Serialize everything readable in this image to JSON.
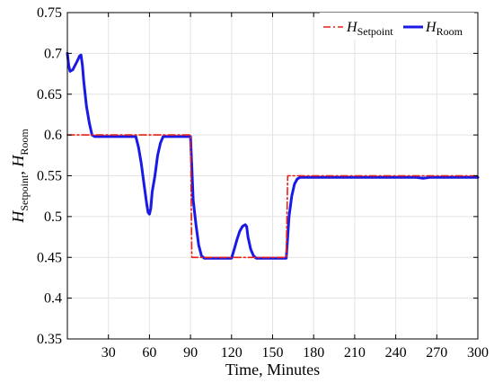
{
  "chart_data": {
    "type": "line",
    "xlabel": "Time,   Minutes",
    "ylabel": {
      "sym1": "H",
      "sub1": "Setpoint",
      "sep": ", ",
      "sym2": "H",
      "sub2": "Room"
    },
    "xlim": [
      0,
      300
    ],
    "ylim": [
      0.35,
      0.75
    ],
    "xticks": [
      30,
      60,
      90,
      120,
      150,
      180,
      210,
      240,
      270,
      300
    ],
    "xtick_labels": [
      "30",
      "60",
      "90",
      "120",
      "150",
      "180",
      "210",
      "240",
      "270",
      "300"
    ],
    "yticks": [
      0.35,
      0.4,
      0.45,
      0.5,
      0.55,
      0.6,
      0.65,
      0.7,
      0.75
    ],
    "ytick_labels": [
      "0.35",
      "0.4",
      "0.45",
      "0.5",
      "0.55",
      "0.6",
      "0.65",
      "0.7",
      "0.75"
    ],
    "grid": true,
    "legend_position": "top-right",
    "series": [
      {
        "name": "H_Setpoint",
        "legend": {
          "sym": "H",
          "sub": "Setpoint"
        },
        "color": "#e8201a",
        "style": "dashdot",
        "x": [
          0,
          90,
          91,
          160,
          161,
          300
        ],
        "y": [
          0.6,
          0.6,
          0.45,
          0.45,
          0.55,
          0.55
        ]
      },
      {
        "name": "H_Room",
        "legend": {
          "sym": "H",
          "sub": "Room"
        },
        "color": "#1a1ae6",
        "style": "solid",
        "x": [
          0,
          1,
          2,
          4,
          7,
          9,
          10,
          11,
          12,
          14,
          16,
          18,
          20,
          25,
          30,
          40,
          50,
          52,
          54,
          56,
          58,
          59,
          60,
          61,
          62,
          64,
          66,
          68,
          70,
          90,
          91,
          92,
          94,
          96,
          98,
          100,
          102,
          110,
          120,
          122,
          124,
          126,
          128,
          130,
          131,
          132,
          134,
          136,
          138,
          140,
          150,
          160,
          161,
          162,
          164,
          166,
          168,
          170,
          200,
          255,
          260,
          265,
          300
        ],
        "y": [
          0.7,
          0.685,
          0.678,
          0.68,
          0.69,
          0.697,
          0.698,
          0.685,
          0.665,
          0.635,
          0.615,
          0.6,
          0.598,
          0.598,
          0.598,
          0.598,
          0.598,
          0.585,
          0.565,
          0.54,
          0.515,
          0.505,
          0.503,
          0.51,
          0.53,
          0.55,
          0.575,
          0.59,
          0.598,
          0.598,
          0.56,
          0.52,
          0.49,
          0.465,
          0.452,
          0.449,
          0.449,
          0.449,
          0.449,
          0.46,
          0.472,
          0.482,
          0.488,
          0.49,
          0.488,
          0.475,
          0.46,
          0.452,
          0.449,
          0.449,
          0.449,
          0.449,
          0.475,
          0.5,
          0.525,
          0.54,
          0.546,
          0.548,
          0.548,
          0.548,
          0.547,
          0.548,
          0.548
        ]
      }
    ]
  }
}
